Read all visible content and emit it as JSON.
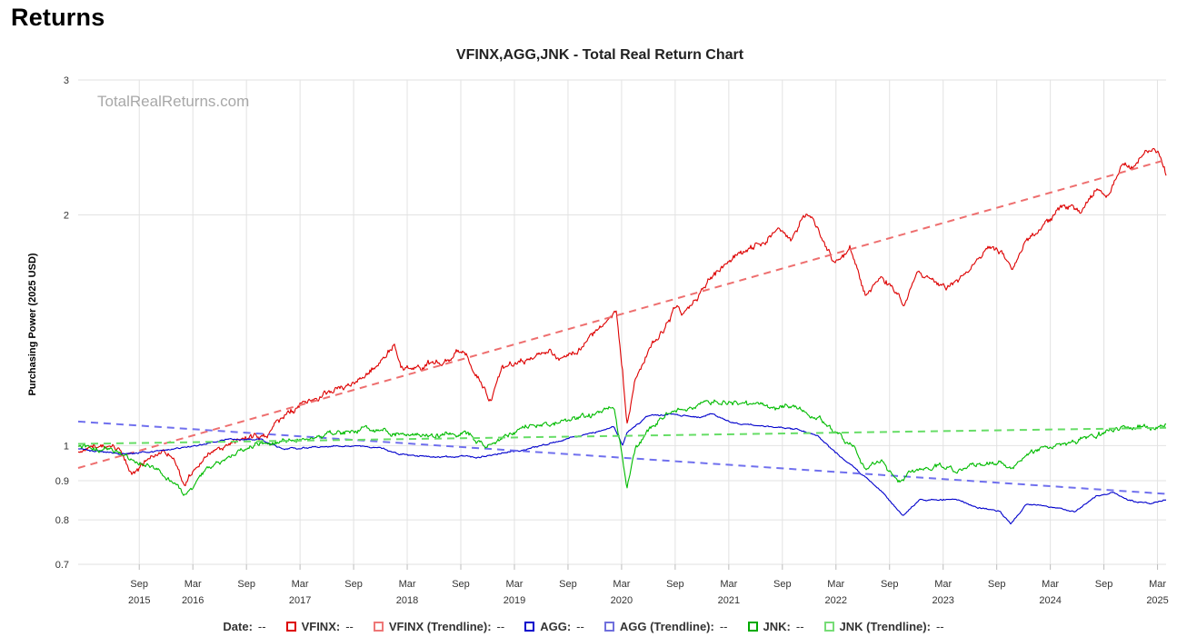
{
  "page": {
    "heading": "Returns"
  },
  "chart_data": {
    "type": "line",
    "title": "VFINX,AGG,JNK - Total Real Return Chart",
    "watermark": "TotalRealReturns.com",
    "ylabel": "Purchasing Power (2025 USD)",
    "xlabel": "",
    "yscale": "log",
    "ylim": [
      0.7,
      3
    ],
    "yticks": [
      0.7,
      0.8,
      0.9,
      1,
      2,
      3
    ],
    "xlim": [
      2015.1,
      2025.25
    ],
    "xticks": [
      {
        "t": 2015.67,
        "month": "Sep",
        "year": "2015"
      },
      {
        "t": 2016.17,
        "month": "Mar",
        "year": "2016"
      },
      {
        "t": 2016.67,
        "month": "Sep",
        "year": ""
      },
      {
        "t": 2017.17,
        "month": "Mar",
        "year": "2017"
      },
      {
        "t": 2017.67,
        "month": "Sep",
        "year": ""
      },
      {
        "t": 2018.17,
        "month": "Mar",
        "year": "2018"
      },
      {
        "t": 2018.67,
        "month": "Sep",
        "year": ""
      },
      {
        "t": 2019.17,
        "month": "Mar",
        "year": "2019"
      },
      {
        "t": 2019.67,
        "month": "Sep",
        "year": ""
      },
      {
        "t": 2020.17,
        "month": "Mar",
        "year": "2020"
      },
      {
        "t": 2020.67,
        "month": "Sep",
        "year": ""
      },
      {
        "t": 2021.17,
        "month": "Mar",
        "year": "2021"
      },
      {
        "t": 2021.67,
        "month": "Sep",
        "year": ""
      },
      {
        "t": 2022.17,
        "month": "Mar",
        "year": "2022"
      },
      {
        "t": 2022.67,
        "month": "Sep",
        "year": ""
      },
      {
        "t": 2023.17,
        "month": "Mar",
        "year": "2023"
      },
      {
        "t": 2023.67,
        "month": "Sep",
        "year": ""
      },
      {
        "t": 2024.17,
        "month": "Mar",
        "year": "2024"
      },
      {
        "t": 2024.67,
        "month": "Sep",
        "year": ""
      },
      {
        "t": 2025.17,
        "month": "Mar",
        "year": "2025"
      }
    ],
    "grid": true,
    "series": [
      {
        "name": "VFINX",
        "color": "#dd0000",
        "dashed": false,
        "noise": 0.012,
        "points": [
          [
            2015.1,
            0.985
          ],
          [
            2015.3,
            1.0
          ],
          [
            2015.5,
            0.985
          ],
          [
            2015.6,
            0.92
          ],
          [
            2015.75,
            0.96
          ],
          [
            2015.9,
            0.985
          ],
          [
            2016.0,
            0.95
          ],
          [
            2016.1,
            0.89
          ],
          [
            2016.2,
            0.94
          ],
          [
            2016.4,
            0.99
          ],
          [
            2016.6,
            1.02
          ],
          [
            2016.75,
            1.03
          ],
          [
            2016.85,
            1.02
          ],
          [
            2016.95,
            1.08
          ],
          [
            2017.2,
            1.13
          ],
          [
            2017.5,
            1.18
          ],
          [
            2017.75,
            1.22
          ],
          [
            2017.95,
            1.3
          ],
          [
            2018.05,
            1.36
          ],
          [
            2018.12,
            1.26
          ],
          [
            2018.3,
            1.27
          ],
          [
            2018.5,
            1.29
          ],
          [
            2018.7,
            1.33
          ],
          [
            2018.8,
            1.25
          ],
          [
            2018.95,
            1.14
          ],
          [
            2019.05,
            1.25
          ],
          [
            2019.3,
            1.3
          ],
          [
            2019.5,
            1.34
          ],
          [
            2019.6,
            1.29
          ],
          [
            2019.8,
            1.35
          ],
          [
            2020.0,
            1.44
          ],
          [
            2020.12,
            1.49
          ],
          [
            2020.18,
            1.25
          ],
          [
            2020.22,
            1.06
          ],
          [
            2020.3,
            1.22
          ],
          [
            2020.45,
            1.35
          ],
          [
            2020.6,
            1.45
          ],
          [
            2020.68,
            1.52
          ],
          [
            2020.75,
            1.48
          ],
          [
            2020.9,
            1.58
          ],
          [
            2021.0,
            1.66
          ],
          [
            2021.2,
            1.76
          ],
          [
            2021.5,
            1.85
          ],
          [
            2021.67,
            1.92
          ],
          [
            2021.75,
            1.86
          ],
          [
            2021.88,
            1.98
          ],
          [
            2021.95,
            2.0
          ],
          [
            2022.05,
            1.86
          ],
          [
            2022.15,
            1.74
          ],
          [
            2022.3,
            1.8
          ],
          [
            2022.45,
            1.56
          ],
          [
            2022.6,
            1.66
          ],
          [
            2022.72,
            1.6
          ],
          [
            2022.8,
            1.53
          ],
          [
            2022.92,
            1.67
          ],
          [
            2023.05,
            1.65
          ],
          [
            2023.2,
            1.6
          ],
          [
            2023.35,
            1.66
          ],
          [
            2023.5,
            1.75
          ],
          [
            2023.6,
            1.82
          ],
          [
            2023.75,
            1.76
          ],
          [
            2023.82,
            1.7
          ],
          [
            2023.95,
            1.86
          ],
          [
            2024.15,
            1.96
          ],
          [
            2024.3,
            2.06
          ],
          [
            2024.45,
            2.02
          ],
          [
            2024.6,
            2.16
          ],
          [
            2024.72,
            2.13
          ],
          [
            2024.85,
            2.33
          ],
          [
            2024.95,
            2.3
          ],
          [
            2025.05,
            2.43
          ],
          [
            2025.14,
            2.43
          ],
          [
            2025.2,
            2.38
          ],
          [
            2025.25,
            2.26
          ]
        ]
      },
      {
        "name": "VFINX (Trendline)",
        "color": "#ee6f6f",
        "dashed": true,
        "noise": 0,
        "points": [
          [
            2015.1,
            0.935
          ],
          [
            2025.25,
            2.36
          ]
        ]
      },
      {
        "name": "AGG",
        "color": "#0000cc",
        "dashed": false,
        "noise": 0.003,
        "points": [
          [
            2015.1,
            0.99
          ],
          [
            2015.5,
            0.975
          ],
          [
            2015.9,
            0.985
          ],
          [
            2016.2,
            1.0
          ],
          [
            2016.5,
            1.02
          ],
          [
            2016.8,
            1.02
          ],
          [
            2017.0,
            0.99
          ],
          [
            2017.3,
            0.995
          ],
          [
            2017.6,
            1.0
          ],
          [
            2017.9,
            0.995
          ],
          [
            2018.1,
            0.975
          ],
          [
            2018.4,
            0.965
          ],
          [
            2018.7,
            0.97
          ],
          [
            2018.85,
            0.965
          ],
          [
            2019.0,
            0.975
          ],
          [
            2019.3,
            0.99
          ],
          [
            2019.6,
            1.015
          ],
          [
            2019.9,
            1.04
          ],
          [
            2020.1,
            1.06
          ],
          [
            2020.18,
            1.0
          ],
          [
            2020.22,
            1.04
          ],
          [
            2020.4,
            1.09
          ],
          [
            2020.6,
            1.1
          ],
          [
            2020.9,
            1.09
          ],
          [
            2021.0,
            1.1
          ],
          [
            2021.2,
            1.07
          ],
          [
            2021.5,
            1.06
          ],
          [
            2021.8,
            1.05
          ],
          [
            2022.0,
            1.03
          ],
          [
            2022.2,
            0.97
          ],
          [
            2022.4,
            0.92
          ],
          [
            2022.6,
            0.87
          ],
          [
            2022.8,
            0.81
          ],
          [
            2022.95,
            0.85
          ],
          [
            2023.1,
            0.85
          ],
          [
            2023.3,
            0.85
          ],
          [
            2023.5,
            0.83
          ],
          [
            2023.7,
            0.82
          ],
          [
            2023.8,
            0.79
          ],
          [
            2023.95,
            0.84
          ],
          [
            2024.2,
            0.83
          ],
          [
            2024.4,
            0.82
          ],
          [
            2024.6,
            0.86
          ],
          [
            2024.75,
            0.87
          ],
          [
            2024.9,
            0.85
          ],
          [
            2025.1,
            0.84
          ],
          [
            2025.25,
            0.85
          ]
        ]
      },
      {
        "name": "AGG (Trendline)",
        "color": "#7070ee",
        "dashed": true,
        "noise": 0,
        "points": [
          [
            2015.1,
            1.075
          ],
          [
            2025.25,
            0.865
          ]
        ]
      },
      {
        "name": "JNK",
        "color": "#00bb00",
        "dashed": false,
        "noise": 0.01,
        "points": [
          [
            2015.1,
            1.0
          ],
          [
            2015.4,
            0.99
          ],
          [
            2015.6,
            0.96
          ],
          [
            2015.8,
            0.94
          ],
          [
            2016.0,
            0.89
          ],
          [
            2016.1,
            0.86
          ],
          [
            2016.3,
            0.93
          ],
          [
            2016.5,
            0.96
          ],
          [
            2016.7,
            1.0
          ],
          [
            2016.9,
            1.01
          ],
          [
            2017.2,
            1.02
          ],
          [
            2017.5,
            1.04
          ],
          [
            2017.8,
            1.05
          ],
          [
            2018.1,
            1.04
          ],
          [
            2018.4,
            1.03
          ],
          [
            2018.7,
            1.04
          ],
          [
            2018.9,
            1.0
          ],
          [
            2019.1,
            1.03
          ],
          [
            2019.3,
            1.06
          ],
          [
            2019.6,
            1.07
          ],
          [
            2019.9,
            1.1
          ],
          [
            2020.1,
            1.12
          ],
          [
            2020.17,
            0.98
          ],
          [
            2020.22,
            0.88
          ],
          [
            2020.3,
            0.99
          ],
          [
            2020.45,
            1.05
          ],
          [
            2020.6,
            1.1
          ],
          [
            2020.8,
            1.12
          ],
          [
            2021.0,
            1.14
          ],
          [
            2021.2,
            1.14
          ],
          [
            2021.5,
            1.13
          ],
          [
            2021.8,
            1.12
          ],
          [
            2022.0,
            1.09
          ],
          [
            2022.2,
            1.03
          ],
          [
            2022.35,
            0.99
          ],
          [
            2022.45,
            0.93
          ],
          [
            2022.6,
            0.96
          ],
          [
            2022.75,
            0.9
          ],
          [
            2022.9,
            0.93
          ],
          [
            2023.1,
            0.94
          ],
          [
            2023.3,
            0.93
          ],
          [
            2023.5,
            0.95
          ],
          [
            2023.7,
            0.95
          ],
          [
            2023.8,
            0.93
          ],
          [
            2023.95,
            0.98
          ],
          [
            2024.2,
            1.0
          ],
          [
            2024.4,
            1.01
          ],
          [
            2024.6,
            1.03
          ],
          [
            2024.8,
            1.05
          ],
          [
            2025.0,
            1.06
          ],
          [
            2025.25,
            1.06
          ]
        ]
      },
      {
        "name": "JNK (Trendline)",
        "color": "#66dd66",
        "dashed": true,
        "noise": 0,
        "points": [
          [
            2015.1,
            1.005
          ],
          [
            2025.25,
            1.055
          ]
        ]
      }
    ]
  },
  "legend": {
    "date_label": "Date:",
    "date_value": "--",
    "items": [
      {
        "label": "VFINX:",
        "value": "--",
        "color": "#dd0000"
      },
      {
        "label": "VFINX (Trendline):",
        "value": "--",
        "color": "#ee7777"
      },
      {
        "label": "AGG:",
        "value": "--",
        "color": "#0000cc"
      },
      {
        "label": "AGG (Trendline):",
        "value": "--",
        "color": "#7070dd"
      },
      {
        "label": "JNK:",
        "value": "--",
        "color": "#00aa00"
      },
      {
        "label": "JNK (Trendline):",
        "value": "--",
        "color": "#77dd77"
      }
    ]
  }
}
